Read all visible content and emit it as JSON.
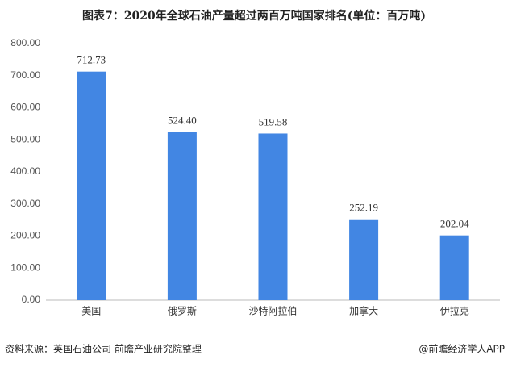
{
  "chart_data": {
    "type": "bar",
    "title": "图表7：2020年全球石油产量超过两百万吨国家排名(单位：百万吨)",
    "categories": [
      "美国",
      "俄罗斯",
      "沙特阿拉伯",
      "加拿大",
      "伊拉克"
    ],
    "values": [
      712.73,
      524.4,
      519.58,
      252.19,
      202.04
    ],
    "value_labels": [
      "712.73",
      "524.40",
      "519.58",
      "252.19",
      "202.04"
    ],
    "color": "#4286e3",
    "ylim": [
      0,
      800
    ],
    "yticks": [
      {
        "value": 0,
        "label": "0.00"
      },
      {
        "value": 100,
        "label": "100.00"
      },
      {
        "value": 200,
        "label": "200.00"
      },
      {
        "value": 300,
        "label": "300.00"
      },
      {
        "value": 400,
        "label": "400.00"
      },
      {
        "value": 500,
        "label": "500.00"
      },
      {
        "value": 600,
        "label": "600.00"
      },
      {
        "value": 700,
        "label": "700.00"
      },
      {
        "value": 800,
        "label": "800.00"
      }
    ],
    "grid": false,
    "source": "资料来源：英国石油公司 前瞻产业研究院整理",
    "credit": "@前瞻经济学人APP"
  }
}
